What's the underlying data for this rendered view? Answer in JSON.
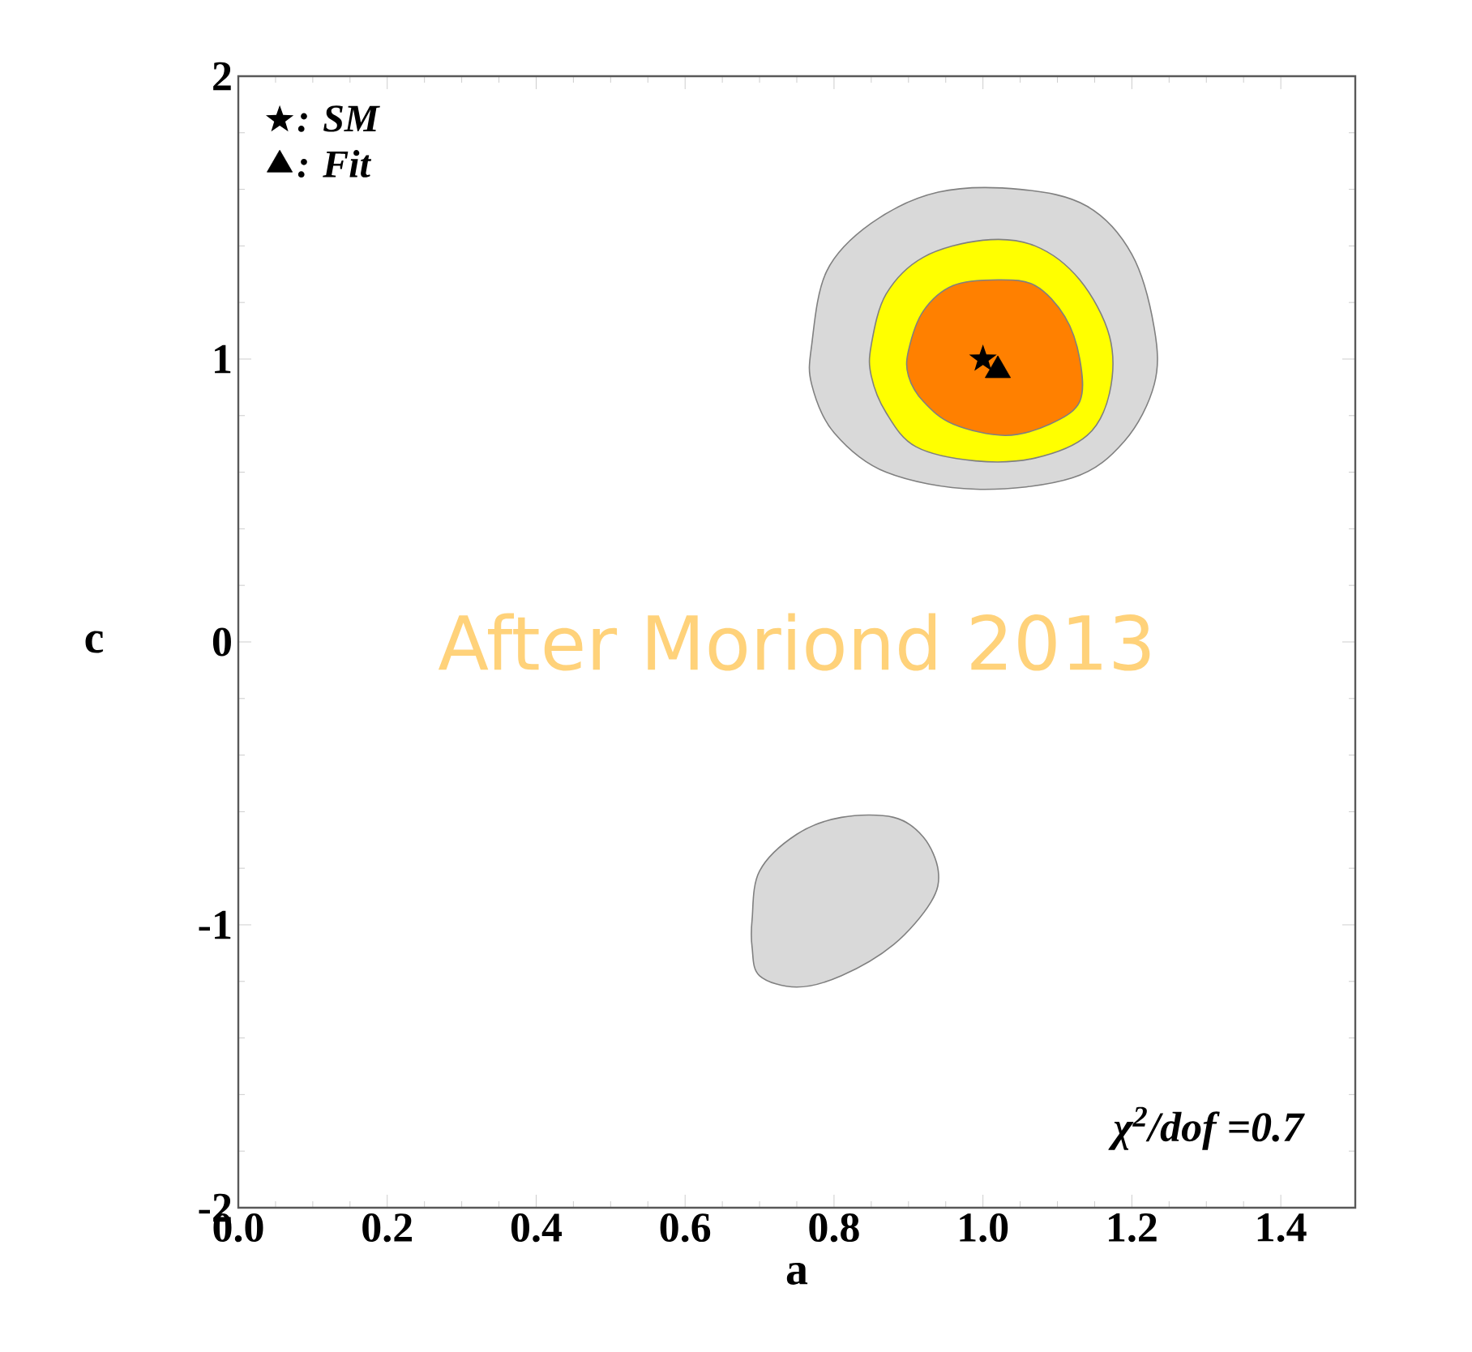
{
  "chart_data": {
    "type": "area",
    "xlabel": "a",
    "ylabel": "c",
    "xlim": [
      0,
      1.5
    ],
    "ylim": [
      -2,
      2
    ],
    "xticks": [
      {
        "value": 0,
        "label": "0.0"
      },
      {
        "value": 0.2,
        "label": "0.2"
      },
      {
        "value": 0.4,
        "label": "0.4"
      },
      {
        "value": 0.6,
        "label": "0.6"
      },
      {
        "value": 0.8,
        "label": "0.8"
      },
      {
        "value": 1,
        "label": "1.0"
      },
      {
        "value": 1.2,
        "label": "1.2"
      },
      {
        "value": 1.4,
        "label": "1.4"
      }
    ],
    "yticks": [
      -2,
      -1,
      0,
      1,
      2
    ],
    "grid": false,
    "legend": "top left",
    "annotations": [
      "After Moriond 2013",
      "*χ$^{2}$/dof =0.7*"
    ],
    "series": [
      {
        "color": "#d9d9d9",
        "x": [
          0.77,
          0.79,
          0.85,
          0.94,
          1.05,
          1.14,
          1.2,
          1.23,
          1.23,
          1.19,
          1.12,
          0.99,
          0.87,
          0.8,
          0.77
        ],
        "values": [
          1.05,
          1.31,
          1.48,
          1.59,
          1.6,
          1.54,
          1.37,
          1.11,
          0.91,
          0.71,
          0.58,
          0.54,
          0.6,
          0.74,
          0.91
        ]
      },
      {
        "color": "#ffff00",
        "x": [
          0.85,
          0.87,
          0.92,
          1.0,
          1.07,
          1.13,
          1.17,
          1.17,
          1.14,
          1.07,
          0.99,
          0.91,
          0.87,
          0.85
        ],
        "values": [
          1.05,
          1.23,
          1.36,
          1.42,
          1.4,
          1.28,
          1.08,
          0.88,
          0.73,
          0.65,
          0.64,
          0.69,
          0.81,
          0.94
        ]
      },
      {
        "color": "#ff8000",
        "x": [
          0.9,
          0.92,
          0.96,
          1.02,
          1.07,
          1.11,
          1.13,
          1.13,
          1.09,
          1.03,
          0.96,
          0.92,
          0.9
        ],
        "values": [
          1.03,
          1.17,
          1.26,
          1.28,
          1.26,
          1.15,
          1.0,
          0.85,
          0.77,
          0.73,
          0.77,
          0.85,
          0.94
        ]
      },
      {
        "color": "#d9d9d9",
        "x": [
          0.69,
          0.7,
          0.75,
          0.81,
          0.88,
          0.92,
          0.94,
          0.93,
          0.88,
          0.81,
          0.75,
          0.7,
          0.69
        ],
        "values": [
          -0.98,
          -0.81,
          -0.68,
          -0.62,
          -0.62,
          -0.69,
          -0.81,
          -0.92,
          -1.07,
          -1.18,
          -1.22,
          -1.18,
          -1.08
        ]
      },
      {
        "type": "scatter",
        "name": ": SM",
        "marker": "star",
        "color": "#000000",
        "x": [
          1.0
        ],
        "values": [
          1.0
        ]
      },
      {
        "type": "scatter",
        "name": ": Fit",
        "marker": "triangle",
        "color": "#000000",
        "x": [
          1.02
        ],
        "values": [
          0.96
        ]
      }
    ]
  }
}
